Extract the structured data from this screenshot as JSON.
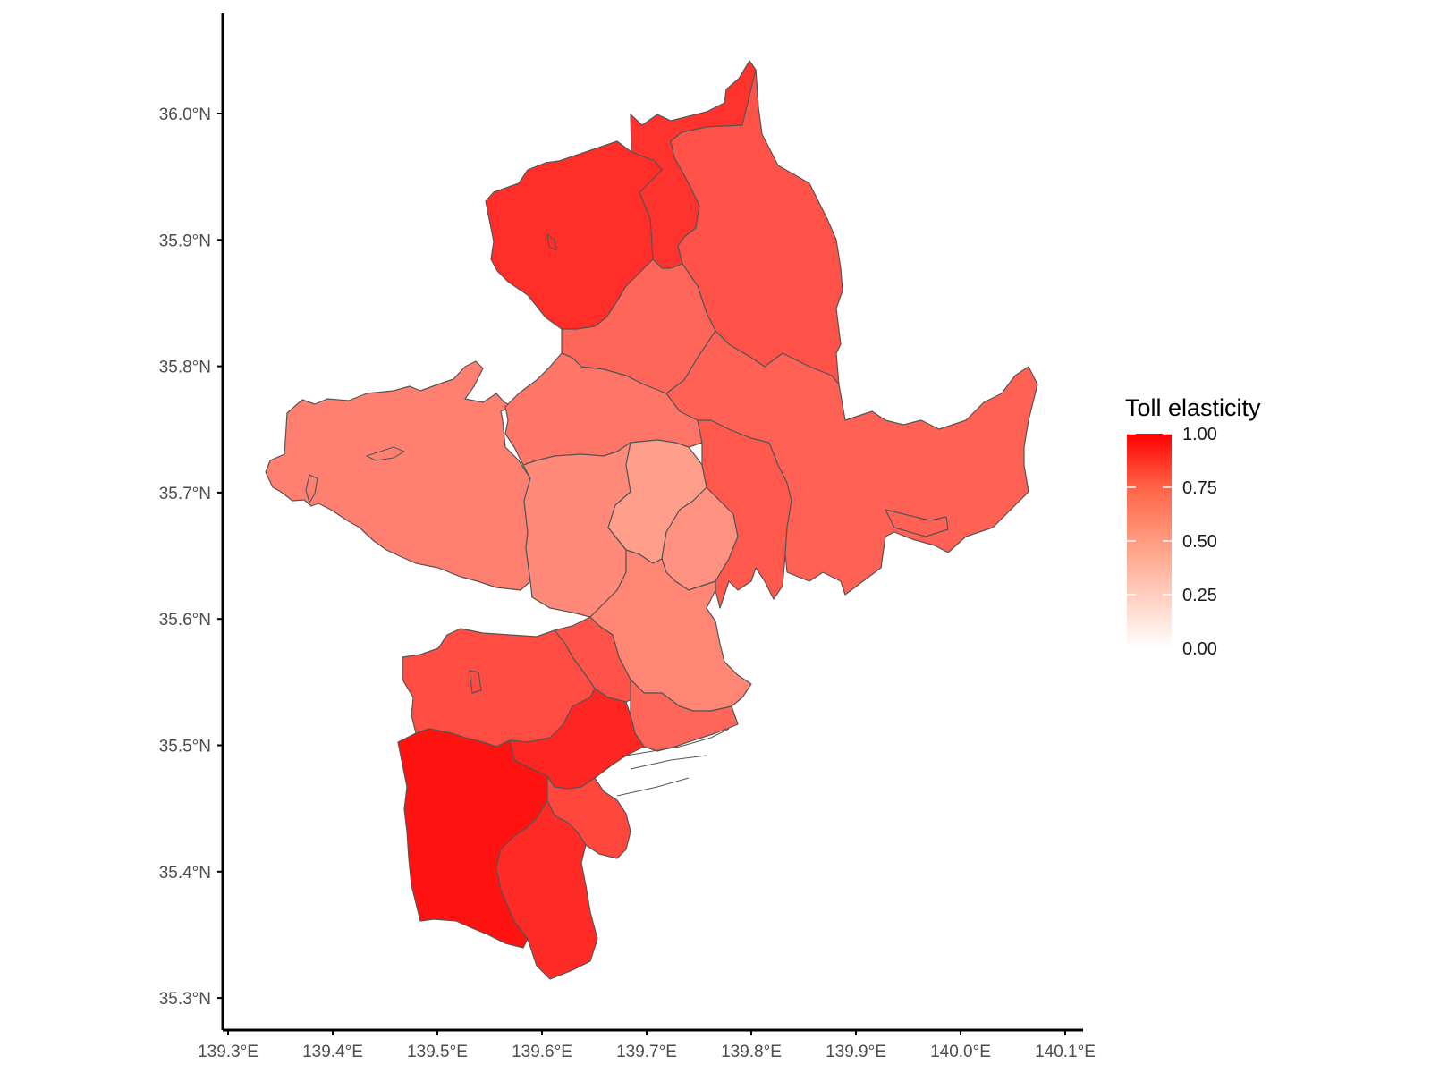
{
  "chart_data": {
    "type": "choropleth",
    "x_axis": {
      "ticks": [
        "139.3°E",
        "139.4°E",
        "139.5°E",
        "139.6°E",
        "139.7°E",
        "139.8°E",
        "139.9°E",
        "140.0°E",
        "140.1°E"
      ],
      "range": [
        139.3,
        140.1
      ]
    },
    "y_axis": {
      "ticks": [
        "35.3°N",
        "35.4°N",
        "35.5°N",
        "35.6°N",
        "35.7°N",
        "35.8°N",
        "35.9°N",
        "36.0°N"
      ],
      "range": [
        35.3,
        36.0
      ]
    },
    "legend": {
      "title": "Toll elasticity",
      "labels": [
        "1.00",
        "0.75",
        "0.50",
        "0.25",
        "0.00"
      ],
      "position": "right",
      "scale": {
        "low": "#ffffff",
        "high": "#ff0000",
        "min": 0,
        "max": 1
      }
    },
    "grid": false,
    "regions": [
      {
        "id": "west-tama",
        "value": 0.5
      },
      {
        "id": "northwest-saitama",
        "value": 0.82
      },
      {
        "id": "north-saitama-strip",
        "value": 0.8
      },
      {
        "id": "east-saitama",
        "value": 0.68
      },
      {
        "id": "central-saitama",
        "value": 0.6
      },
      {
        "id": "north-tokyo",
        "value": 0.54
      },
      {
        "id": "west-tokyo",
        "value": 0.46
      },
      {
        "id": "central-tokyo",
        "value": 0.38
      },
      {
        "id": "east-tokyo",
        "value": 0.43
      },
      {
        "id": "tokyo-east-bank",
        "value": 0.65
      },
      {
        "id": "west-chiba",
        "value": 0.62
      },
      {
        "id": "south-tokyo",
        "value": 0.48
      },
      {
        "id": "kawasaki-north",
        "value": 0.68
      },
      {
        "id": "kawasaki-south",
        "value": 0.6
      },
      {
        "id": "yokohama-north",
        "value": 0.7
      },
      {
        "id": "yokohama-central",
        "value": 0.85
      },
      {
        "id": "yokohama-west",
        "value": 0.93
      },
      {
        "id": "yokohama-port",
        "value": 0.72
      },
      {
        "id": "yokohama-south",
        "value": 0.83
      }
    ]
  }
}
